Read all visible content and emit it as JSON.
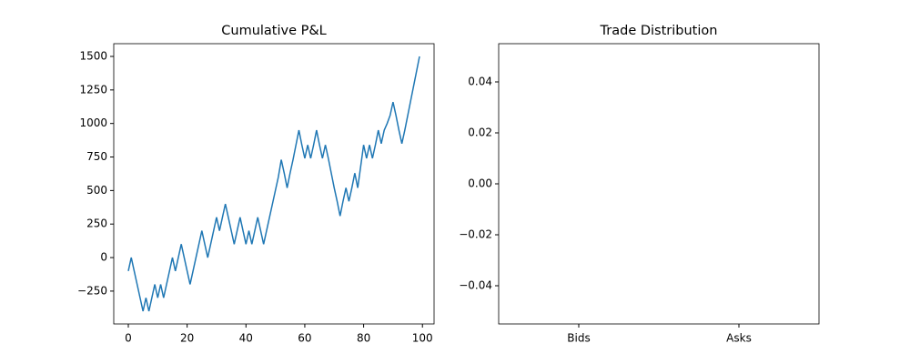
{
  "chart_data": [
    {
      "type": "line",
      "title": "Cumulative P&L",
      "color": "#1f77b4",
      "x": [
        0,
        1,
        2,
        3,
        4,
        5,
        6,
        7,
        8,
        9,
        10,
        11,
        12,
        13,
        14,
        15,
        16,
        17,
        18,
        19,
        20,
        21,
        22,
        23,
        24,
        25,
        26,
        27,
        28,
        29,
        30,
        31,
        32,
        33,
        34,
        35,
        36,
        37,
        38,
        39,
        40,
        41,
        42,
        43,
        44,
        45,
        46,
        47,
        48,
        49,
        50,
        51,
        52,
        53,
        54,
        55,
        56,
        57,
        58,
        59,
        60,
        61,
        62,
        63,
        64,
        65,
        66,
        67,
        68,
        69,
        70,
        71,
        72,
        73,
        74,
        75,
        76,
        77,
        78,
        79,
        80,
        81,
        82,
        83,
        84,
        85,
        86,
        87,
        88,
        89,
        90,
        91,
        92,
        93,
        94,
        95,
        96,
        97,
        98,
        99
      ],
      "values": [
        -100,
        0,
        -100,
        -200,
        -300,
        -400,
        -300,
        -400,
        -300,
        -200,
        -300,
        -200,
        -300,
        -200,
        -100,
        0,
        -100,
        0,
        100,
        0,
        -100,
        -200,
        -100,
        0,
        100,
        200,
        100,
        0,
        100,
        200,
        300,
        200,
        300,
        400,
        300,
        200,
        100,
        200,
        300,
        200,
        100,
        200,
        100,
        200,
        300,
        200,
        100,
        200,
        300,
        400,
        500,
        600,
        730,
        630,
        520,
        630,
        730,
        840,
        950,
        840,
        740,
        840,
        740,
        840,
        950,
        840,
        740,
        840,
        740,
        630,
        520,
        420,
        310,
        420,
        520,
        420,
        520,
        630,
        520,
        680,
        840,
        740,
        840,
        740,
        840,
        950,
        850,
        950,
        1000,
        1060,
        1160,
        1060,
        950,
        850,
        950,
        1060,
        1170,
        1280,
        1390,
        1500
      ],
      "xlim": [
        -4.95,
        103.95
      ],
      "xticks": [
        0,
        20,
        40,
        60,
        80,
        100
      ],
      "ylim": [
        -495,
        1595
      ],
      "yticks": [
        {
          "value": -250,
          "label": "−250"
        },
        0,
        250,
        500,
        750,
        1000,
        1250,
        1500
      ]
    },
    {
      "type": "bar",
      "title": "Trade Distribution",
      "color": "#1f77b4",
      "categories": [
        "Bids",
        "Asks"
      ],
      "values": [
        0,
        0
      ],
      "ylim": [
        -0.055,
        0.055
      ],
      "yticks": [
        {
          "value": -0.04,
          "label": "−0.04"
        },
        {
          "value": -0.02,
          "label": "−0.02"
        },
        {
          "value": 0,
          "label": "0.00"
        },
        0.02,
        0.04
      ]
    }
  ]
}
